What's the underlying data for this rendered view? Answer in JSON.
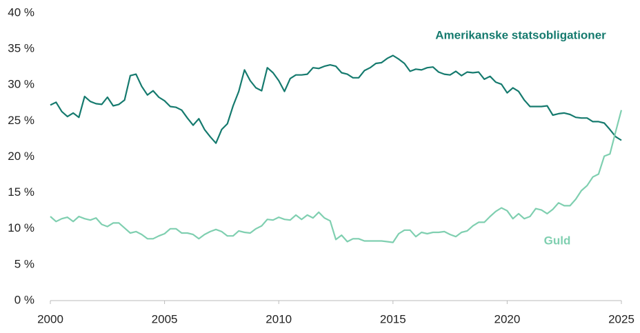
{
  "chart_data": {
    "type": "line",
    "x": [
      2000,
      2000.25,
      2000.5,
      2000.75,
      2001,
      2001.25,
      2001.5,
      2001.75,
      2002,
      2002.25,
      2002.5,
      2002.75,
      2003,
      2003.25,
      2003.5,
      2003.75,
      2004,
      2004.25,
      2004.5,
      2004.75,
      2005,
      2005.25,
      2005.5,
      2005.75,
      2006,
      2006.25,
      2006.5,
      2006.75,
      2007,
      2007.25,
      2007.5,
      2007.75,
      2008,
      2008.25,
      2008.5,
      2008.75,
      2009,
      2009.25,
      2009.5,
      2009.75,
      2010,
      2010.25,
      2010.5,
      2010.75,
      2011,
      2011.25,
      2011.5,
      2011.75,
      2012,
      2012.25,
      2012.5,
      2012.75,
      2013,
      2013.25,
      2013.5,
      2013.75,
      2014,
      2014.25,
      2014.5,
      2014.75,
      2015,
      2015.25,
      2015.5,
      2015.75,
      2016,
      2016.25,
      2016.5,
      2016.75,
      2017,
      2017.25,
      2017.5,
      2017.75,
      2018,
      2018.25,
      2018.5,
      2018.75,
      2019,
      2019.25,
      2019.5,
      2019.75,
      2020,
      2020.25,
      2020.5,
      2020.75,
      2021,
      2021.25,
      2021.5,
      2021.75,
      2022,
      2022.25,
      2022.5,
      2022.75,
      2023,
      2023.25,
      2023.5,
      2023.75,
      2024,
      2024.25,
      2024.5,
      2024.75,
      2025
    ],
    "series": [
      {
        "name": "Amerikanske statsobligationer",
        "color": "#157a6e",
        "values": [
          27.2,
          27.6,
          26.3,
          25.6,
          26.1,
          25.5,
          28.4,
          27.7,
          27.4,
          27.3,
          28.3,
          27.1,
          27.3,
          27.9,
          31.3,
          31.5,
          29.8,
          28.6,
          29.2,
          28.3,
          27.8,
          27.0,
          26.9,
          26.5,
          25.4,
          24.4,
          25.3,
          23.8,
          22.8,
          21.9,
          23.8,
          24.6,
          27.1,
          29.1,
          32.1,
          30.6,
          29.6,
          29.2,
          32.4,
          31.7,
          30.6,
          29.1,
          30.9,
          31.4,
          31.4,
          31.5,
          32.4,
          32.3,
          32.6,
          32.8,
          32.6,
          31.7,
          31.5,
          31.0,
          31.0,
          32.0,
          32.4,
          33.0,
          33.1,
          33.7,
          34.1,
          33.6,
          33.0,
          31.9,
          32.2,
          32.1,
          32.4,
          32.5,
          31.8,
          31.5,
          31.4,
          31.9,
          31.3,
          31.8,
          31.7,
          31.8,
          30.8,
          31.2,
          30.4,
          30.1,
          28.9,
          29.6,
          29.1,
          27.9,
          27.0,
          27.0,
          27.0,
          27.1,
          25.8,
          26.0,
          26.1,
          25.9,
          25.5,
          25.4,
          25.4,
          24.9,
          24.9,
          24.7,
          23.8,
          22.8,
          22.3
        ]
      },
      {
        "name": "Guld",
        "color": "#7fcfb0",
        "values": [
          11.7,
          11.0,
          11.4,
          11.6,
          11.0,
          11.7,
          11.4,
          11.2,
          11.5,
          10.6,
          10.3,
          10.8,
          10.8,
          10.1,
          9.4,
          9.6,
          9.2,
          8.6,
          8.6,
          9.0,
          9.3,
          10.0,
          10.0,
          9.4,
          9.4,
          9.2,
          8.6,
          9.2,
          9.6,
          9.9,
          9.6,
          9.0,
          9.0,
          9.7,
          9.5,
          9.4,
          10.0,
          10.4,
          11.3,
          11.2,
          11.6,
          11.3,
          11.2,
          11.9,
          11.3,
          11.9,
          11.5,
          12.3,
          11.5,
          11.1,
          8.5,
          9.1,
          8.2,
          8.6,
          8.6,
          8.3,
          8.3,
          8.3,
          8.3,
          8.2,
          8.1,
          9.3,
          9.8,
          9.8,
          8.9,
          9.5,
          9.3,
          9.5,
          9.5,
          9.6,
          9.2,
          8.9,
          9.5,
          9.7,
          10.4,
          10.9,
          10.9,
          11.7,
          12.4,
          12.9,
          12.5,
          11.4,
          12.1,
          11.4,
          11.7,
          12.8,
          12.6,
          12.1,
          12.7,
          13.6,
          13.2,
          13.2,
          14.1,
          15.3,
          16.0,
          17.2,
          17.6,
          20.1,
          20.4,
          23.5,
          26.5
        ]
      }
    ],
    "xlim": [
      2000,
      2025
    ],
    "xticks": [
      2000,
      2005,
      2010,
      2015,
      2020,
      2025
    ],
    "ylim": [
      0,
      40
    ],
    "yticks": [
      {
        "value": 0,
        "label": "0 %"
      },
      {
        "value": 5,
        "label": "5 %"
      },
      {
        "value": 10,
        "label": "10 %"
      },
      {
        "value": 15,
        "label": "15 %"
      },
      {
        "value": 20,
        "label": "20 %"
      },
      {
        "value": 25,
        "label": "25 %"
      },
      {
        "value": 30,
        "label": "30 %"
      },
      {
        "value": 35,
        "label": "35 %"
      },
      {
        "value": 40,
        "label": "40 %"
      }
    ],
    "grid": false
  }
}
